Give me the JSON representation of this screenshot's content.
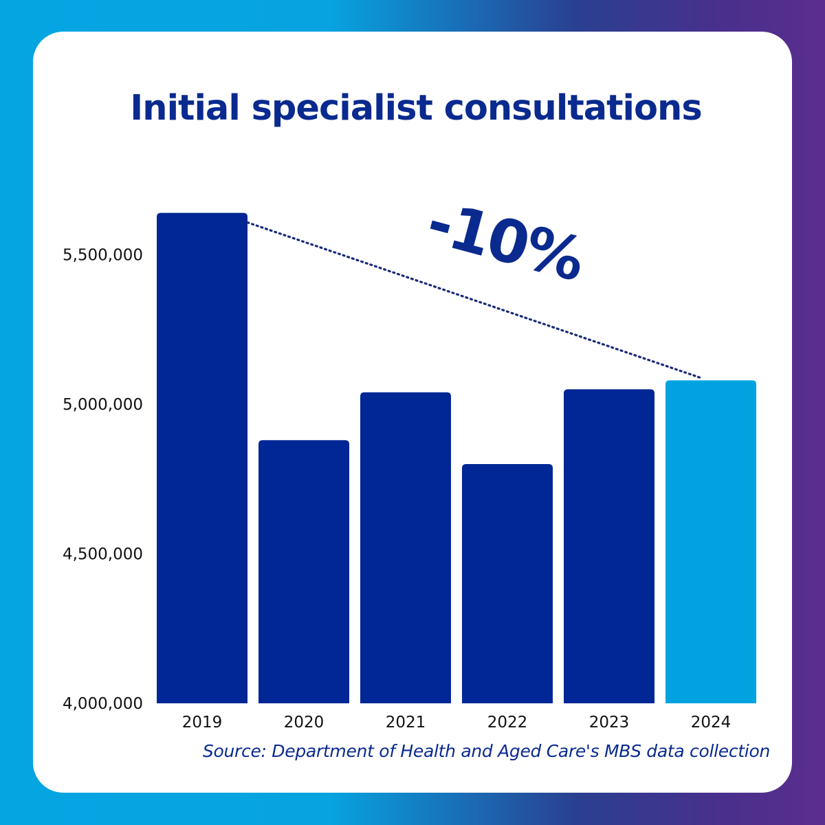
{
  "chart_data": {
    "type": "bar",
    "title": "Initial specialist consultations",
    "categories": [
      "2019",
      "2020",
      "2021",
      "2022",
      "2023",
      "2024"
    ],
    "values": [
      5640000,
      4880000,
      5040000,
      4800000,
      5050000,
      5080000
    ],
    "ylim": [
      4000000,
      5800000
    ],
    "yticks": [
      4000000,
      4500000,
      5000000,
      5500000
    ],
    "ytick_labels": [
      "4,000,000",
      "4,500,000",
      "5,000,000",
      "5,500,000"
    ],
    "xlabel": "",
    "ylabel": "",
    "grid": false,
    "colors": {
      "bar": "#002795",
      "highlight_bar": "#00a3e0",
      "highlight_category": "2024",
      "text_accent": "#0a2a8f",
      "trend_line": "#1a2a7a"
    },
    "annotation": {
      "text": "-10%",
      "from_category": "2019",
      "to_category": "2024"
    },
    "source": "Source: Department of Health and Aged Care's MBS data collection"
  }
}
